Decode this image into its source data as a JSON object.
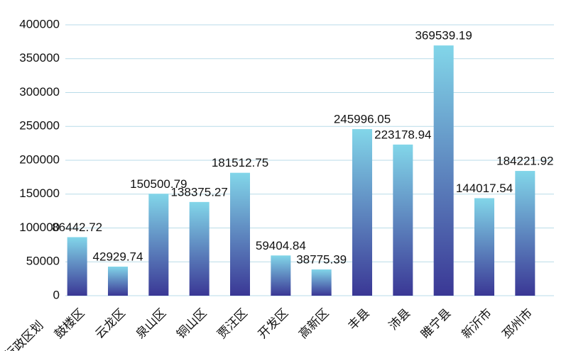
{
  "chart_data": {
    "type": "bar",
    "x_label": "行政区划",
    "categories": [
      "鼓楼区",
      "云龙区",
      "泉山区",
      "铜山区",
      "贾汪区",
      "开发区",
      "高新区",
      "丰县",
      "沛县",
      "睢宁县",
      "新沂市",
      "邳州市"
    ],
    "values": [
      86442.72,
      42929.74,
      150500.79,
      138375.27,
      181512.75,
      59404.84,
      38775.39,
      245996.05,
      223178.94,
      369539.19,
      144017.54,
      184221.92
    ],
    "gradient": [
      "#82d6e9",
      "#3a3795"
    ],
    "ylim": [
      0,
      400000
    ],
    "yticks": [
      0,
      50000,
      100000,
      150000,
      200000,
      250000,
      300000,
      350000,
      400000
    ],
    "grid": true
  }
}
